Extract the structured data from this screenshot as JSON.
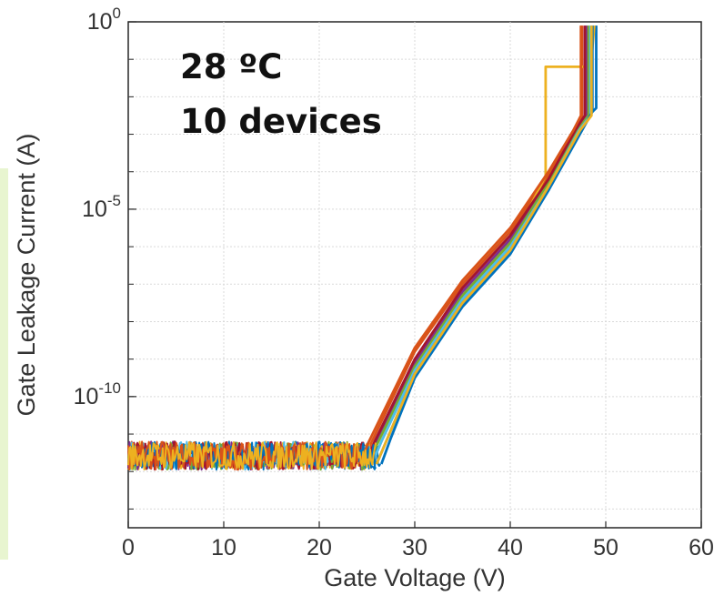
{
  "chart_data": {
    "type": "line",
    "title": "",
    "xlabel": "Gate Voltage (V)",
    "ylabel": "Gate Leakage Current (A)",
    "xlim": [
      0,
      60
    ],
    "ylim_exponent": [
      -13.5,
      0
    ],
    "yscale": "log",
    "xticks": [
      "0",
      "10",
      "20",
      "30",
      "40",
      "50",
      "60"
    ],
    "yticks": [
      {
        "base": "10",
        "exp": "0",
        "value_exp": 0
      },
      {
        "base": "10",
        "exp": "-5",
        "value_exp": -5
      },
      {
        "base": "10",
        "exp": "-10",
        "value_exp": -10
      }
    ],
    "grid": true,
    "annotation": {
      "line1": "28 ºC",
      "line2": "10 devices"
    },
    "series": [
      {
        "color": "#0072BD",
        "noise_end": 26.5,
        "curve": [
          [
            26.5,
            -11.8
          ],
          [
            27.5,
            -11.1
          ],
          [
            30,
            -9.5
          ],
          [
            35,
            -7.6
          ],
          [
            40,
            -6.2
          ],
          [
            44,
            -4.5
          ],
          [
            47,
            -2.8
          ],
          [
            49,
            -2.3
          ],
          [
            49,
            -0.1
          ]
        ]
      },
      {
        "color": "#D95319",
        "noise_end": 24.5,
        "curve": [
          [
            24.5,
            -11.8
          ],
          [
            25.5,
            -11.2
          ],
          [
            30,
            -8.8
          ],
          [
            35,
            -7.0
          ],
          [
            40,
            -5.6
          ],
          [
            44,
            -4.1
          ],
          [
            46.5,
            -3.0
          ],
          [
            47.5,
            -2.5
          ],
          [
            47.5,
            -0.1
          ]
        ]
      },
      {
        "color": "#EDB120",
        "noise_end": 25.5,
        "curve": [
          [
            25.5,
            -11.8
          ],
          [
            26.5,
            -11.2
          ],
          [
            30,
            -9.3
          ],
          [
            35,
            -7.4
          ],
          [
            40,
            -6.0
          ],
          [
            43.7,
            -4.1
          ],
          [
            43.7,
            -1.2
          ],
          [
            48.5,
            -1.2
          ],
          [
            48.5,
            -1.0
          ],
          [
            48.8,
            -0.1
          ]
        ]
      },
      {
        "color": "#7E2F8E",
        "noise_end": 25.0,
        "curve": [
          [
            25.0,
            -11.8
          ],
          [
            26,
            -11.2
          ],
          [
            30,
            -9.1
          ],
          [
            35,
            -7.2
          ],
          [
            40,
            -5.8
          ],
          [
            44,
            -4.3
          ],
          [
            47,
            -2.9
          ],
          [
            48,
            -2.5
          ],
          [
            48,
            -0.1
          ]
        ]
      },
      {
        "color": "#77AC30",
        "noise_end": 25.0,
        "curve": [
          [
            25.0,
            -11.8
          ],
          [
            26,
            -11.3
          ],
          [
            30,
            -9.2
          ],
          [
            35,
            -7.3
          ],
          [
            40,
            -5.9
          ],
          [
            44,
            -4.3
          ],
          [
            47,
            -2.9
          ],
          [
            48.2,
            -2.5
          ],
          [
            48.2,
            -0.1
          ]
        ]
      },
      {
        "color": "#4DBEEE",
        "noise_end": 25.5,
        "curve": [
          [
            25.5,
            -11.8
          ],
          [
            26.5,
            -11.2
          ],
          [
            30,
            -9.3
          ],
          [
            35,
            -7.4
          ],
          [
            40,
            -6.0
          ],
          [
            44,
            -4.4
          ],
          [
            47.2,
            -2.9
          ],
          [
            48.4,
            -2.5
          ],
          [
            48.4,
            -0.1
          ]
        ]
      },
      {
        "color": "#A2142F",
        "noise_end": 24.8,
        "curve": [
          [
            24.8,
            -11.8
          ],
          [
            25.8,
            -11.2
          ],
          [
            30,
            -9.0
          ],
          [
            35,
            -7.1
          ],
          [
            40,
            -5.7
          ],
          [
            44,
            -4.2
          ],
          [
            46.8,
            -2.9
          ],
          [
            47.8,
            -2.5
          ],
          [
            47.8,
            -0.1
          ]
        ]
      },
      {
        "color": "#0072BD",
        "noise_end": 26.0,
        "curve": [
          [
            26.0,
            -11.8
          ],
          [
            27,
            -11.2
          ],
          [
            30,
            -9.4
          ],
          [
            35,
            -7.5
          ],
          [
            40,
            -6.1
          ],
          [
            44,
            -4.5
          ],
          [
            47.5,
            -2.9
          ],
          [
            48.6,
            -2.4
          ],
          [
            48.6,
            -0.1
          ]
        ]
      },
      {
        "color": "#D95319",
        "noise_end": 24.2,
        "curve": [
          [
            24.2,
            -11.8
          ],
          [
            25.2,
            -11.2
          ],
          [
            30,
            -8.7
          ],
          [
            35,
            -6.9
          ],
          [
            40,
            -5.5
          ],
          [
            44,
            -4.0
          ],
          [
            46.6,
            -2.9
          ],
          [
            47.4,
            -2.5
          ],
          [
            47.4,
            -0.1
          ]
        ]
      },
      {
        "color": "#EDB120",
        "noise_end": 26.0,
        "curve": [
          [
            26.0,
            -11.8
          ],
          [
            27,
            -11.2
          ],
          [
            30,
            -9.4
          ],
          [
            35,
            -7.5
          ],
          [
            40,
            -6.1
          ],
          [
            44,
            -4.4
          ],
          [
            47.3,
            -2.9
          ],
          [
            48.5,
            -2.5
          ],
          [
            48.5,
            -0.1
          ]
        ]
      }
    ]
  }
}
